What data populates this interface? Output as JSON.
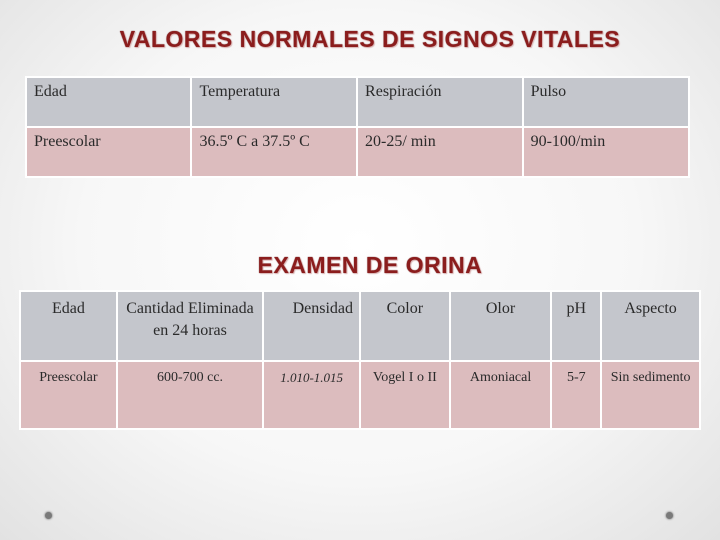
{
  "vitals": {
    "title": "VALORES NORMALES DE SIGNOS VITALES",
    "headers": [
      "Edad",
      "Temperatura",
      "Respiración",
      "Pulso"
    ],
    "row": [
      "Preescolar",
      "36.5º C a 37.5º C",
      "20-25/ min",
      "90-100/min"
    ]
  },
  "urine": {
    "title": "EXAMEN DE ORINA",
    "headers": [
      "Edad",
      "Cantidad Eliminada en 24 horas",
      "Densidad",
      "Color",
      "Olor",
      "pH",
      "Aspecto"
    ],
    "row": [
      "Preescolar",
      "600-700 cc.",
      "1.010-1.015",
      "Vogel I o II",
      "Amoniacal",
      "5-7",
      "Sin sedimento"
    ]
  }
}
